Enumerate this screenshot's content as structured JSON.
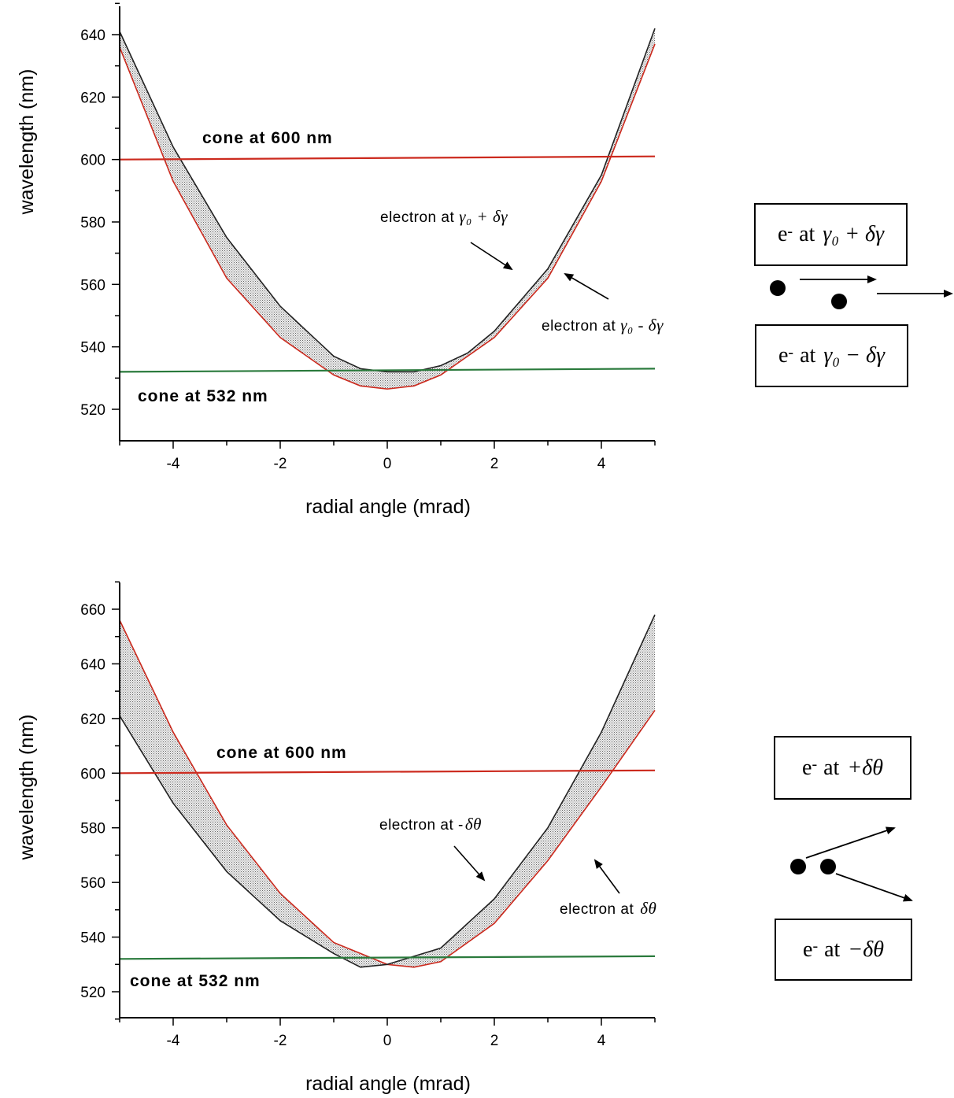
{
  "chart_data": [
    {
      "type": "line",
      "xlabel": "radial angle (mrad)",
      "ylabel": "wavelength (nm)",
      "xlim": [
        -5,
        5
      ],
      "ylim": [
        511,
        650
      ],
      "xticks": [
        "-4",
        "-2",
        "0",
        "2",
        "4"
      ],
      "yticks": [
        "520",
        "540",
        "560",
        "580",
        "600",
        "620",
        "640"
      ],
      "series": [
        {
          "color": "#cc2a1e",
          "points": [
            [
              -5,
              636
            ],
            [
              -4,
              593
            ],
            [
              -3,
              562
            ],
            [
              -2,
              543
            ],
            [
              -1,
              531
            ],
            [
              -0.5,
              527.5
            ],
            [
              0,
              526.5
            ],
            [
              0.5,
              527.5
            ],
            [
              1,
              531
            ],
            [
              2,
              543
            ],
            [
              3,
              562
            ],
            [
              4,
              593
            ],
            [
              5,
              637
            ]
          ]
        },
        {
          "color": "#222222",
          "points": [
            [
              -5,
              641
            ],
            [
              -4,
              604
            ],
            [
              -3,
              575
            ],
            [
              -2,
              553
            ],
            [
              -1,
              537
            ],
            [
              -0.5,
              533
            ],
            [
              0,
              532
            ],
            [
              0.5,
              532
            ],
            [
              1,
              534
            ],
            [
              1.5,
              538
            ],
            [
              2,
              545
            ],
            [
              3,
              565
            ],
            [
              4,
              595
            ],
            [
              5,
              642
            ]
          ]
        },
        {
          "color": "#cc2a1e",
          "points": [
            [
              -5,
              600
            ],
            [
              5,
              601
            ]
          ]
        },
        {
          "color": "#2a7a3c",
          "points": [
            [
              -5,
              532
            ],
            [
              5,
              533
            ]
          ]
        }
      ],
      "annotations": [
        "cone at 600 nm",
        "cone at 532 nm",
        "electron at",
        "electron at"
      ],
      "grid": false
    },
    {
      "type": "line",
      "xlabel": "radial angle (mrad)",
      "ylabel": "wavelength (nm)",
      "xlim": [
        -5,
        5
      ],
      "ylim": [
        510,
        670
      ],
      "xticks": [
        "-4",
        "-2",
        "0",
        "2",
        "4"
      ],
      "yticks": [
        "520",
        "540",
        "560",
        "580",
        "600",
        "620",
        "640",
        "660"
      ],
      "series": [
        {
          "color": "#cc2a1e",
          "points": [
            [
              -5,
              656
            ],
            [
              -4,
              615
            ],
            [
              -3,
              581
            ],
            [
              -2,
              556
            ],
            [
              -1,
              538
            ],
            [
              0,
              530
            ],
            [
              0.5,
              529
            ],
            [
              1,
              531
            ],
            [
              2,
              545
            ],
            [
              3,
              568
            ],
            [
              4,
              595
            ],
            [
              5,
              623
            ]
          ]
        },
        {
          "color": "#222222",
          "points": [
            [
              -5,
              621
            ],
            [
              -4,
              589
            ],
            [
              -3,
              564
            ],
            [
              -2,
              546
            ],
            [
              -1,
              534
            ],
            [
              -0.5,
              529
            ],
            [
              0,
              530
            ],
            [
              1,
              536
            ],
            [
              2,
              554
            ],
            [
              3,
              580
            ],
            [
              4,
              615
            ],
            [
              5,
              658
            ]
          ]
        },
        {
          "color": "#cc2a1e",
          "points": [
            [
              -5,
              600
            ],
            [
              5,
              601
            ]
          ]
        },
        {
          "color": "#2a7a3c",
          "points": [
            [
              -5,
              532
            ],
            [
              5,
              533
            ]
          ]
        }
      ],
      "annotations": [
        "cone at 600 nm",
        "cone at 532 nm",
        "electron at -",
        "electron at"
      ],
      "grid": false
    }
  ],
  "top": {
    "cone600": "cone at 600 nm",
    "cone532": "cone at 532 nm",
    "electron_plus": "electron at",
    "electron_plus_math": "γ₀ + δγ",
    "electron_minus": "electron at",
    "electron_minus_math": "γ₀ - δγ"
  },
  "bottom": {
    "cone600": "cone at 600 nm",
    "cone532": "cone at 532 nm",
    "electron_neg": "electron at -",
    "electron_neg_math": "δθ",
    "electron_pos": "electron at",
    "electron_pos_math": "δθ"
  },
  "legend_boxes": {
    "b1": {
      "e": "e",
      "sup": "-",
      "at": "at",
      "math": "γ₀ + δγ"
    },
    "b2": {
      "e": "e",
      "sup": "-",
      "at": "at",
      "math": "γ₀ − δγ"
    },
    "b3": {
      "e": "e",
      "sup": "-",
      "at": "at",
      "math": "+δθ"
    },
    "b4": {
      "e": "e",
      "sup": "-",
      "at": "at",
      "math": "−δθ"
    }
  }
}
